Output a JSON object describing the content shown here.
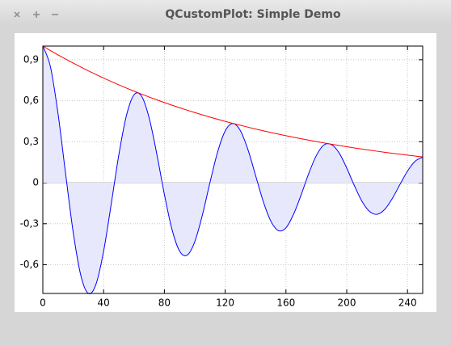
{
  "window": {
    "title": "QCustomPlot: Simple Demo"
  },
  "chart_data": {
    "type": "line",
    "x": [
      0,
      5,
      10,
      15,
      20,
      25,
      30,
      35,
      40,
      45,
      50,
      55,
      60,
      65,
      70,
      75,
      80,
      85,
      90,
      95,
      100,
      105,
      110,
      115,
      120,
      125,
      130,
      135,
      140,
      145,
      150,
      155,
      160,
      165,
      170,
      175,
      180,
      185,
      190,
      195,
      200,
      205,
      210,
      215,
      220,
      225,
      230,
      235,
      240,
      245,
      250
    ],
    "series": [
      {
        "color": "#0000ff",
        "fill": "#e8e8fc",
        "values": [
          1,
          0.8488,
          0.5055,
          0.064,
          -0.3642,
          -0.6781,
          -0.8105,
          -0.7416,
          -0.5006,
          -0.1562,
          0.2033,
          0.4911,
          0.6436,
          0.6332,
          0.4728,
          0.2102,
          -0.0854,
          -0.3416,
          -0.5,
          -0.5293,
          -0.4308,
          -0.2361,
          0.0021,
          0.2245,
          0.3792,
          0.4336,
          0.3815,
          0.2419,
          0.0538,
          -0.135,
          -0.2795,
          -0.3503,
          -0.3296,
          -0.2304,
          -0.0886,
          0.0683,
          0.1989,
          0.277,
          0.2786,
          0.2181,
          0.1076,
          -0.0203,
          -0.1351,
          -0.2095,
          -0.2307,
          -0.195,
          -0.115,
          -0.0129,
          0.0856,
          0.1574,
          0.1872
        ]
      },
      {
        "color": "#ff0000",
        "values": [
          1,
          0.9672,
          0.9355,
          0.9048,
          0.8752,
          0.8465,
          0.8187,
          0.7919,
          0.7659,
          0.7408,
          0.7165,
          0.693,
          0.6703,
          0.6484,
          0.6271,
          0.6065,
          0.5866,
          0.5674,
          0.5488,
          0.5308,
          0.5134,
          0.4966,
          0.4803,
          0.4646,
          0.4493,
          0.4346,
          0.4204,
          0.4066,
          0.3932,
          0.3804,
          0.3679,
          0.3558,
          0.3442,
          0.3329,
          0.322,
          0.3114,
          0.3012,
          0.2913,
          0.2818,
          0.2725,
          0.2636,
          0.255,
          0.2466,
          0.2385,
          0.2307,
          0.2231,
          0.2158,
          0.2087,
          0.2019,
          0.1953,
          0.1889
        ]
      }
    ],
    "xlim": [
      0,
      250
    ],
    "ylim": [
      -0.81,
      1
    ],
    "xticks": [
      0,
      40,
      80,
      120,
      160,
      200,
      240
    ],
    "yticks": [
      {
        "value": -0.6,
        "label": "-0,6"
      },
      {
        "value": -0.3,
        "label": "-0,3"
      },
      0,
      {
        "value": 0.3,
        "label": "0,3"
      },
      {
        "value": 0.6,
        "label": "0,6"
      },
      {
        "value": 0.9,
        "label": "0,9"
      }
    ],
    "grid": true
  }
}
